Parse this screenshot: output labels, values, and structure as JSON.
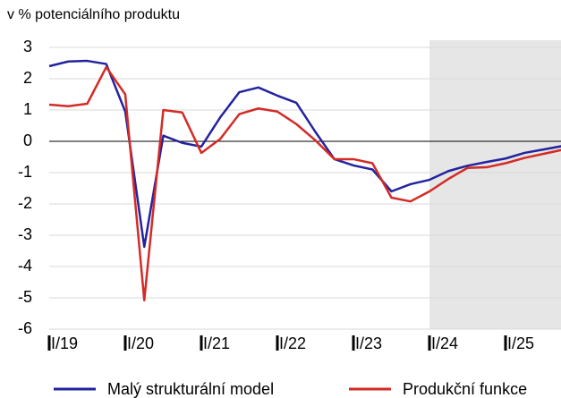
{
  "chart_data": {
    "type": "line",
    "ylabel": "v % potenciálního produktu",
    "categories": [
      "I/19",
      null,
      null,
      null,
      "I/20",
      null,
      null,
      null,
      "I/21",
      null,
      null,
      null,
      "I/22",
      null,
      null,
      null,
      "I/23",
      null,
      null,
      null,
      "I/24",
      null,
      null,
      null,
      "I/25",
      null,
      null,
      null
    ],
    "series": [
      {
        "name": "Malý strukturální model",
        "color": "#2323a0",
        "values": [
          2.4,
          2.55,
          2.57,
          2.47,
          0.95,
          -3.37,
          0.18,
          -0.05,
          -0.17,
          0.77,
          1.57,
          1.72,
          1.46,
          1.23,
          0.3,
          -0.57,
          -0.77,
          -0.9,
          -1.6,
          -1.37,
          -1.23,
          -0.95,
          -0.78,
          -0.66,
          -0.55,
          -0.37,
          -0.26,
          -0.15
        ]
      },
      {
        "name": "Produkční funkce",
        "color": "#d32b25",
        "values": [
          1.17,
          1.12,
          1.2,
          2.37,
          1.5,
          -5.08,
          1.0,
          0.92,
          -0.37,
          0.08,
          0.87,
          1.05,
          0.95,
          0.55,
          0.03,
          -0.57,
          -0.57,
          -0.7,
          -1.8,
          -1.92,
          -1.6,
          -1.2,
          -0.85,
          -0.83,
          -0.7,
          -0.53,
          -0.4,
          -0.27
        ]
      }
    ],
    "ylim": [
      -6,
      3
    ],
    "yticks": [
      -6,
      -5,
      -4,
      -3,
      -2,
      -1,
      0,
      1,
      2,
      3
    ],
    "grid": true,
    "shade_from": "I/24",
    "legend": "bottom"
  }
}
